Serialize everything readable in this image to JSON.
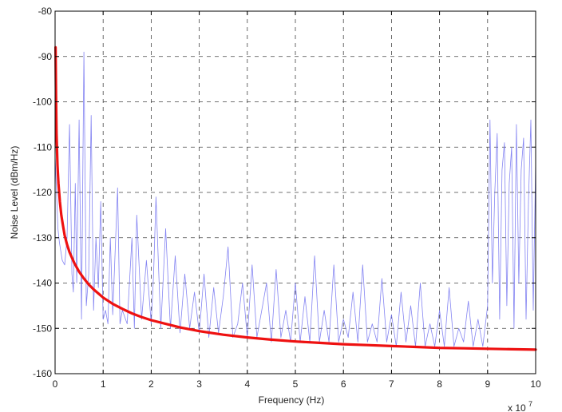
{
  "chart_data": {
    "type": "line",
    "title": "",
    "xlabel": "Frequency (Hz)",
    "ylabel": "Noise Level (dBm/Hz)",
    "x_multiplier_base": "x 10",
    "x_multiplier_exp": "7",
    "xlim": [
      0,
      10
    ],
    "ylim": [
      -160,
      -80
    ],
    "grid": true,
    "x_ticks": [
      "0",
      "1",
      "2",
      "3",
      "4",
      "5",
      "6",
      "7",
      "8",
      "9",
      "10"
    ],
    "y_ticks": [
      "-80",
      "-90",
      "-100",
      "-110",
      "-120",
      "-130",
      "-140",
      "-150",
      "-160"
    ],
    "series": [
      {
        "color": "#6f6ff0",
        "style": "thin",
        "x": [
          0.0,
          0.03,
          0.06,
          0.09,
          0.12,
          0.15,
          0.2,
          0.25,
          0.3,
          0.35,
          0.38,
          0.42,
          0.45,
          0.5,
          0.55,
          0.6,
          0.65,
          0.7,
          0.75,
          0.8,
          0.85,
          0.9,
          0.95,
          1.0,
          1.05,
          1.1,
          1.15,
          1.2,
          1.3,
          1.35,
          1.4,
          1.5,
          1.6,
          1.65,
          1.7,
          1.8,
          1.9,
          2.0,
          2.05,
          2.1,
          2.2,
          2.3,
          2.4,
          2.5,
          2.6,
          2.7,
          2.8,
          2.9,
          3.0,
          3.1,
          3.2,
          3.3,
          3.4,
          3.5,
          3.6,
          3.7,
          3.8,
          3.9,
          4.0,
          4.1,
          4.2,
          4.3,
          4.4,
          4.5,
          4.6,
          4.7,
          4.8,
          4.9,
          5.0,
          5.1,
          5.2,
          5.3,
          5.4,
          5.5,
          5.6,
          5.7,
          5.8,
          5.9,
          6.0,
          6.1,
          6.2,
          6.3,
          6.4,
          6.5,
          6.6,
          6.7,
          6.8,
          6.9,
          7.0,
          7.1,
          7.2,
          7.3,
          7.4,
          7.5,
          7.6,
          7.7,
          7.8,
          7.9,
          8.0,
          8.1,
          8.2,
          8.3,
          8.4,
          8.5,
          8.6,
          8.7,
          8.8,
          8.9,
          9.0,
          9.05,
          9.1,
          9.15,
          9.2,
          9.25,
          9.3,
          9.35,
          9.4,
          9.45,
          9.5,
          9.55,
          9.6,
          9.65,
          9.7,
          9.75,
          9.8,
          9.85,
          9.9,
          9.95,
          10.0
        ],
        "y": [
          -112,
          -120,
          -128,
          -131,
          -133,
          -135,
          -136,
          -130,
          -105,
          -138,
          -142,
          -118,
          -140,
          -104,
          -148,
          -89,
          -145,
          -138,
          -103,
          -146,
          -130,
          -141,
          -122,
          -148,
          -146,
          -149,
          -130,
          -147,
          -119,
          -149,
          -146,
          -149,
          -130,
          -150,
          -125,
          -148,
          -135,
          -149,
          -138,
          -121,
          -150,
          -128,
          -150,
          -134,
          -151,
          -138,
          -150,
          -142,
          -151,
          -138,
          -152,
          -141,
          -151,
          -143,
          -132,
          -152,
          -149,
          -140,
          -152,
          -136,
          -152,
          -146,
          -140,
          -153,
          -137,
          -152,
          -146,
          -153,
          -140,
          -153,
          -143,
          -153,
          -134,
          -153,
          -146,
          -153,
          -136,
          -153,
          -148,
          -152,
          -142,
          -153,
          -136,
          -153,
          -149,
          -153,
          -139,
          -153,
          -147,
          -154,
          -142,
          -153,
          -145,
          -154,
          -140,
          -154,
          -149,
          -154,
          -146,
          -154,
          -141,
          -154,
          -150,
          -153,
          -144,
          -154,
          -148,
          -154,
          -145,
          -104,
          -140,
          -120,
          -107,
          -148,
          -115,
          -109,
          -145,
          -118,
          -110,
          -150,
          -105,
          -140,
          -115,
          -108,
          -148,
          -122,
          -104,
          -146,
          -113
        ]
      },
      {
        "color": "#ee1111",
        "style": "thick",
        "x": [
          0.01,
          0.02,
          0.03,
          0.05,
          0.07,
          0.1,
          0.13,
          0.16,
          0.2,
          0.25,
          0.3,
          0.4,
          0.5,
          0.6,
          0.7,
          0.8,
          1.0,
          1.2,
          1.4,
          1.6,
          1.8,
          2.0,
          2.3,
          2.6,
          3.0,
          3.5,
          4.0,
          4.5,
          5.0,
          5.5,
          6.0,
          6.5,
          7.0,
          7.5,
          8.0,
          8.5,
          9.0,
          9.5,
          10.0
        ],
        "y": [
          -88,
          -99,
          -107,
          -114,
          -118,
          -122,
          -125,
          -127,
          -129.5,
          -131.5,
          -133.2,
          -135.6,
          -137.5,
          -139,
          -140.3,
          -141.4,
          -143.2,
          -144.6,
          -145.7,
          -146.7,
          -147.5,
          -148.2,
          -149,
          -149.8,
          -150.6,
          -151.4,
          -152.0,
          -152.5,
          -152.9,
          -153.2,
          -153.5,
          -153.7,
          -153.9,
          -154.1,
          -154.3,
          -154.4,
          -154.5,
          -154.6,
          -154.7
        ]
      }
    ]
  }
}
